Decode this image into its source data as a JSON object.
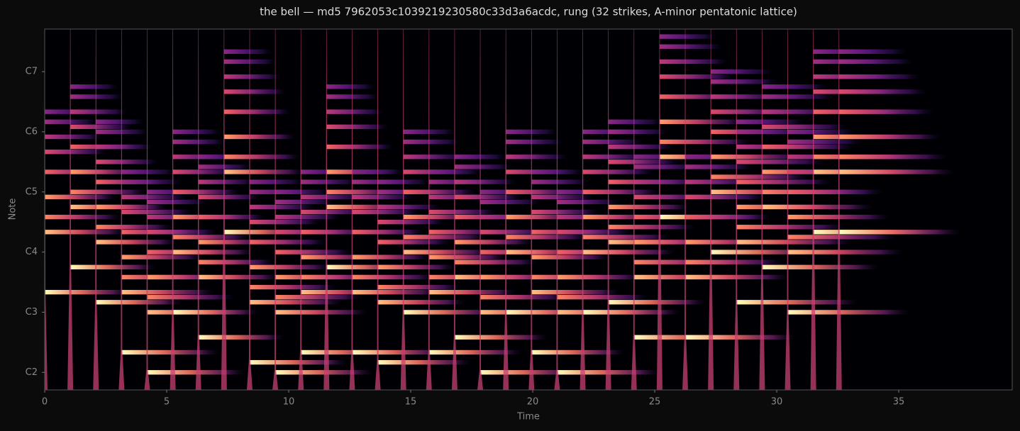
{
  "chart_data": {
    "type": "spectrogram",
    "title": "the bell — md5 7962053c1039219230580c33d3a6acdc, rung (32 strikes, A-minor pentatonic lattice)",
    "xlabel": "Time",
    "ylabel": "Note",
    "onsets": [
      0,
      1.05,
      2.1,
      3.15,
      4.2,
      5.25,
      6.3,
      7.35,
      8.4,
      9.45,
      10.5,
      11.55,
      12.6,
      13.65,
      14.7,
      15.75,
      16.8,
      17.85,
      18.9,
      19.95,
      21,
      22.05,
      23.1,
      24.15,
      25.2,
      26.25,
      27.3,
      28.35,
      29.4,
      30.45,
      31.5,
      32.55
    ],
    "notes": [
      52,
      57,
      50,
      40,
      36,
      48,
      43,
      64,
      38,
      36,
      40,
      57,
      40,
      38,
      48,
      40,
      43,
      36,
      48,
      40,
      36,
      48,
      50,
      43,
      67,
      43,
      60,
      50,
      57,
      48,
      64,
      64
    ],
    "durations": [
      3.5,
      3.5,
      3.5,
      4,
      4,
      3.5,
      3.5,
      3.5,
      4,
      4,
      3.8,
      3.5,
      3.8,
      3.8,
      3.8,
      3.8,
      3.8,
      4,
      3.8,
      3.8,
      4.2,
      4,
      4,
      4.5,
      4.2,
      4.5,
      4.5,
      5,
      4.8,
      5,
      5,
      5
    ],
    "partial_semitones": [
      0,
      12,
      15,
      19,
      24,
      28,
      31,
      34,
      36
    ],
    "partial_levels": [
      1,
      0.88,
      0.75,
      0.8,
      0.68,
      0.6,
      0.52,
      0.45,
      0.4
    ],
    "colormap": "magma",
    "xlim": [
      0,
      39.65
    ],
    "xticks": [
      0,
      5,
      10,
      15,
      20,
      25,
      30,
      35
    ],
    "ylim": [
      32.5,
      104.5
    ],
    "yticks": [
      {
        "value": 36,
        "label": "C2"
      },
      {
        "value": 48,
        "label": "C3"
      },
      {
        "value": 60,
        "label": "C4"
      },
      {
        "value": 72,
        "label": "C5"
      },
      {
        "value": 84,
        "label": "C6"
      },
      {
        "value": 96,
        "label": "C7"
      }
    ]
  }
}
